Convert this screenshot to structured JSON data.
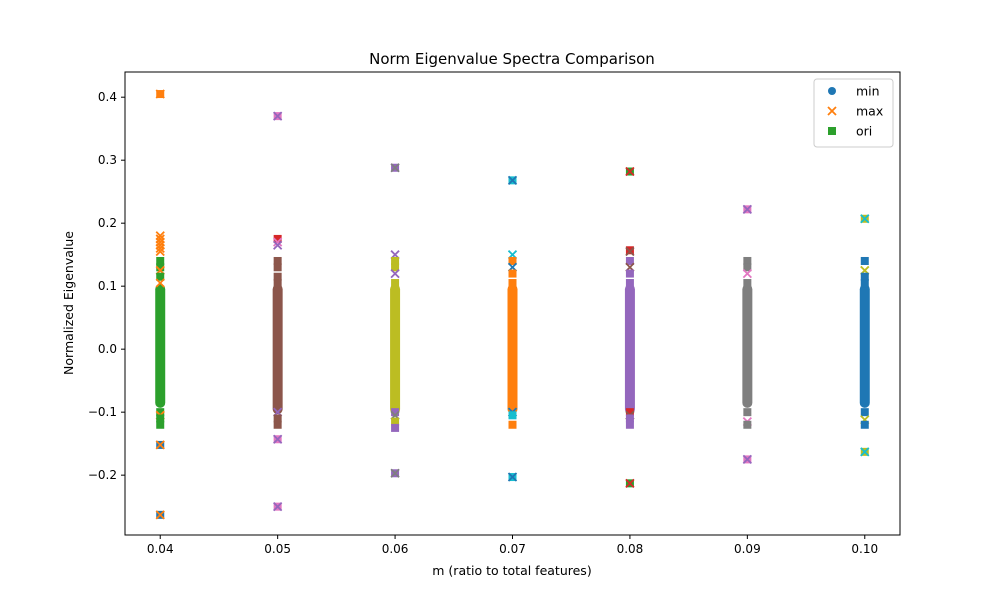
{
  "chart_data": {
    "type": "scatter",
    "title": "Norm Eigenvalue Spectra Comparison",
    "xlabel": "m (ratio to total features)",
    "ylabel": "Normalized Eigenvalue",
    "xlim": [
      0.037,
      0.103
    ],
    "ylim": [
      -0.295,
      0.44
    ],
    "x_ticks": [
      "0.04",
      "0.05",
      "0.06",
      "0.07",
      "0.08",
      "0.09",
      "0.10"
    ],
    "x_tick_values": [
      0.04,
      0.05,
      0.06,
      0.07,
      0.08,
      0.09,
      0.1
    ],
    "y_ticks": [
      "−0.2",
      "−0.1",
      "0.0",
      "0.1",
      "0.2",
      "0.3",
      "0.4"
    ],
    "y_tick_values": [
      -0.2,
      -0.1,
      0.0,
      0.1,
      0.2,
      0.3,
      0.4
    ],
    "grid": false,
    "legend_position": "top-right",
    "legend": [
      {
        "label": "min",
        "marker": "circle",
        "color": "#1f77b4"
      },
      {
        "label": "max",
        "marker": "x",
        "color": "#ff7f0e"
      },
      {
        "label": "ori",
        "marker": "square",
        "color": "#2ca02c"
      }
    ],
    "groups": [
      {
        "x": 0.04,
        "color": "#2ca02c",
        "band": [
          -0.09,
          0.1
        ],
        "outliers": [
          {
            "y": 0.405,
            "marker": "square",
            "color": "#ff7f0e"
          },
          {
            "y": 0.405,
            "marker": "x",
            "color": "#ff7f0e"
          },
          {
            "y": 0.18,
            "marker": "x",
            "color": "#ff7f0e"
          },
          {
            "y": 0.175,
            "marker": "x",
            "color": "#ff7f0e"
          },
          {
            "y": 0.17,
            "marker": "x",
            "color": "#ff7f0e"
          },
          {
            "y": 0.165,
            "marker": "x",
            "color": "#ff7f0e"
          },
          {
            "y": 0.16,
            "marker": "x",
            "color": "#ff7f0e"
          },
          {
            "y": 0.155,
            "marker": "x",
            "color": "#ff7f0e"
          },
          {
            "y": 0.14,
            "marker": "square",
            "color": "#2ca02c"
          },
          {
            "y": 0.13,
            "marker": "square",
            "color": "#2ca02c"
          },
          {
            "y": 0.125,
            "marker": "x",
            "color": "#ff7f0e"
          },
          {
            "y": 0.115,
            "marker": "square",
            "color": "#2ca02c"
          },
          {
            "y": 0.105,
            "marker": "x",
            "color": "#ff7f0e"
          },
          {
            "y": -0.1,
            "marker": "square",
            "color": "#2ca02c"
          },
          {
            "y": -0.105,
            "marker": "x",
            "color": "#ff7f0e"
          },
          {
            "y": -0.11,
            "marker": "square",
            "color": "#2ca02c"
          },
          {
            "y": -0.12,
            "marker": "square",
            "color": "#2ca02c"
          },
          {
            "y": -0.152,
            "marker": "square",
            "color": "#1f77b4"
          },
          {
            "y": -0.152,
            "marker": "x",
            "color": "#ff7f0e"
          },
          {
            "y": -0.263,
            "marker": "square",
            "color": "#1f77b4"
          },
          {
            "y": -0.263,
            "marker": "x",
            "color": "#ff7f0e"
          }
        ]
      },
      {
        "x": 0.05,
        "color": "#8c564b",
        "band": [
          -0.1,
          0.1
        ],
        "outliers": [
          {
            "y": 0.37,
            "marker": "square",
            "color": "#e377c2"
          },
          {
            "y": 0.37,
            "marker": "x",
            "color": "#9467bd"
          },
          {
            "y": 0.175,
            "marker": "square",
            "color": "#d62728"
          },
          {
            "y": 0.17,
            "marker": "x",
            "color": "#e377c2"
          },
          {
            "y": 0.165,
            "marker": "x",
            "color": "#9467bd"
          },
          {
            "y": 0.14,
            "marker": "square",
            "color": "#8c564b"
          },
          {
            "y": 0.13,
            "marker": "square",
            "color": "#8c564b"
          },
          {
            "y": 0.115,
            "marker": "square",
            "color": "#8c564b"
          },
          {
            "y": 0.105,
            "marker": "square",
            "color": "#8c564b"
          },
          {
            "y": -0.1,
            "marker": "x",
            "color": "#9467bd"
          },
          {
            "y": -0.11,
            "marker": "square",
            "color": "#8c564b"
          },
          {
            "y": -0.12,
            "marker": "square",
            "color": "#8c564b"
          },
          {
            "y": -0.143,
            "marker": "square",
            "color": "#e377c2"
          },
          {
            "y": -0.143,
            "marker": "x",
            "color": "#9467bd"
          },
          {
            "y": -0.25,
            "marker": "square",
            "color": "#e377c2"
          },
          {
            "y": -0.25,
            "marker": "x",
            "color": "#9467bd"
          }
        ]
      },
      {
        "x": 0.06,
        "color": "#bcbd22",
        "band": [
          -0.1,
          0.1
        ],
        "outliers": [
          {
            "y": 0.288,
            "marker": "square",
            "color": "#9467bd"
          },
          {
            "y": 0.288,
            "marker": "x",
            "color": "#7f7f7f"
          },
          {
            "y": 0.15,
            "marker": "x",
            "color": "#9467bd"
          },
          {
            "y": 0.14,
            "marker": "square",
            "color": "#bcbd22"
          },
          {
            "y": 0.13,
            "marker": "square",
            "color": "#bcbd22"
          },
          {
            "y": 0.12,
            "marker": "x",
            "color": "#9467bd"
          },
          {
            "y": 0.105,
            "marker": "square",
            "color": "#bcbd22"
          },
          {
            "y": -0.1,
            "marker": "square",
            "color": "#9467bd"
          },
          {
            "y": -0.105,
            "marker": "x",
            "color": "#7f7f7f"
          },
          {
            "y": -0.115,
            "marker": "square",
            "color": "#bcbd22"
          },
          {
            "y": -0.125,
            "marker": "square",
            "color": "#9467bd"
          },
          {
            "y": -0.197,
            "marker": "square",
            "color": "#9467bd"
          },
          {
            "y": -0.197,
            "marker": "x",
            "color": "#7f7f7f"
          }
        ]
      },
      {
        "x": 0.07,
        "color": "#ff7f0e",
        "band": [
          -0.1,
          0.1
        ],
        "outliers": [
          {
            "y": 0.268,
            "marker": "square",
            "color": "#17becf"
          },
          {
            "y": 0.268,
            "marker": "x",
            "color": "#1f77b4"
          },
          {
            "y": 0.15,
            "marker": "x",
            "color": "#17becf"
          },
          {
            "y": 0.14,
            "marker": "square",
            "color": "#ff7f0e"
          },
          {
            "y": 0.13,
            "marker": "x",
            "color": "#1f77b4"
          },
          {
            "y": 0.12,
            "marker": "square",
            "color": "#ff7f0e"
          },
          {
            "y": 0.105,
            "marker": "square",
            "color": "#ff7f0e"
          },
          {
            "y": -0.1,
            "marker": "x",
            "color": "#1f77b4"
          },
          {
            "y": -0.105,
            "marker": "square",
            "color": "#17becf"
          },
          {
            "y": -0.12,
            "marker": "square",
            "color": "#ff7f0e"
          },
          {
            "y": -0.203,
            "marker": "square",
            "color": "#17becf"
          },
          {
            "y": -0.203,
            "marker": "x",
            "color": "#1f77b4"
          }
        ]
      },
      {
        "x": 0.08,
        "color": "#9467bd",
        "band": [
          -0.1,
          0.1
        ],
        "outliers": [
          {
            "y": 0.282,
            "marker": "square",
            "color": "#2ca02c"
          },
          {
            "y": 0.282,
            "marker": "x",
            "color": "#d62728"
          },
          {
            "y": 0.157,
            "marker": "square",
            "color": "#d62728"
          },
          {
            "y": 0.155,
            "marker": "x",
            "color": "#8c564b"
          },
          {
            "y": 0.14,
            "marker": "square",
            "color": "#9467bd"
          },
          {
            "y": 0.13,
            "marker": "x",
            "color": "#8c564b"
          },
          {
            "y": 0.12,
            "marker": "square",
            "color": "#9467bd"
          },
          {
            "y": 0.105,
            "marker": "square",
            "color": "#9467bd"
          },
          {
            "y": -0.1,
            "marker": "square",
            "color": "#d62728"
          },
          {
            "y": -0.105,
            "marker": "x",
            "color": "#8c564b"
          },
          {
            "y": -0.11,
            "marker": "square",
            "color": "#9467bd"
          },
          {
            "y": -0.12,
            "marker": "square",
            "color": "#9467bd"
          },
          {
            "y": -0.213,
            "marker": "square",
            "color": "#2ca02c"
          },
          {
            "y": -0.213,
            "marker": "x",
            "color": "#d62728"
          }
        ]
      },
      {
        "x": 0.09,
        "color": "#7f7f7f",
        "band": [
          -0.09,
          0.1
        ],
        "outliers": [
          {
            "y": 0.222,
            "marker": "square",
            "color": "#e377c2"
          },
          {
            "y": 0.222,
            "marker": "x",
            "color": "#9467bd"
          },
          {
            "y": 0.14,
            "marker": "square",
            "color": "#7f7f7f"
          },
          {
            "y": 0.13,
            "marker": "square",
            "color": "#7f7f7f"
          },
          {
            "y": 0.12,
            "marker": "x",
            "color": "#e377c2"
          },
          {
            "y": 0.105,
            "marker": "square",
            "color": "#7f7f7f"
          },
          {
            "y": -0.1,
            "marker": "square",
            "color": "#7f7f7f"
          },
          {
            "y": -0.115,
            "marker": "x",
            "color": "#e377c2"
          },
          {
            "y": -0.12,
            "marker": "square",
            "color": "#7f7f7f"
          },
          {
            "y": -0.175,
            "marker": "square",
            "color": "#e377c2"
          },
          {
            "y": -0.175,
            "marker": "x",
            "color": "#9467bd"
          }
        ]
      },
      {
        "x": 0.1,
        "color": "#1f77b4",
        "band": [
          -0.09,
          0.1
        ],
        "outliers": [
          {
            "y": 0.207,
            "marker": "square",
            "color": "#bcbd22"
          },
          {
            "y": 0.207,
            "marker": "x",
            "color": "#17becf"
          },
          {
            "y": 0.14,
            "marker": "square",
            "color": "#1f77b4"
          },
          {
            "y": 0.125,
            "marker": "x",
            "color": "#bcbd22"
          },
          {
            "y": 0.115,
            "marker": "square",
            "color": "#1f77b4"
          },
          {
            "y": 0.105,
            "marker": "square",
            "color": "#1f77b4"
          },
          {
            "y": -0.1,
            "marker": "square",
            "color": "#1f77b4"
          },
          {
            "y": -0.112,
            "marker": "x",
            "color": "#bcbd22"
          },
          {
            "y": -0.12,
            "marker": "square",
            "color": "#1f77b4"
          },
          {
            "y": -0.163,
            "marker": "square",
            "color": "#bcbd22"
          },
          {
            "y": -0.163,
            "marker": "x",
            "color": "#17becf"
          }
        ]
      }
    ]
  }
}
